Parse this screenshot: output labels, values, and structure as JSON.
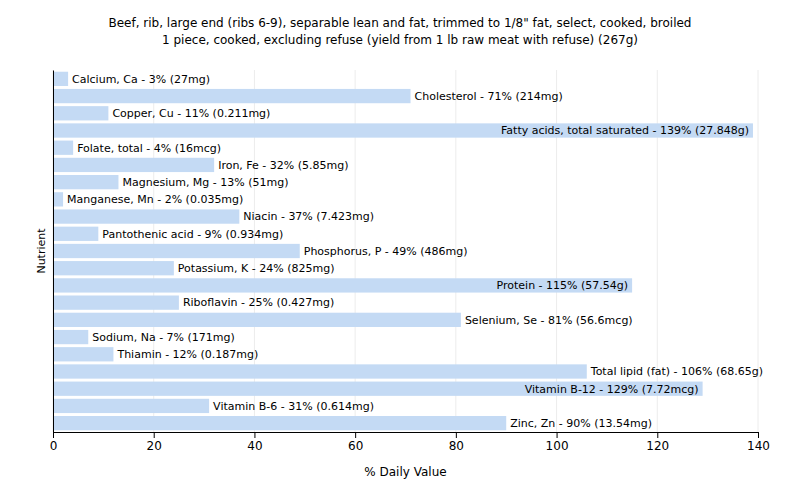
{
  "chart_data": {
    "type": "bar",
    "orientation": "horizontal",
    "title": "Beef, rib, large end (ribs 6-9), separable lean and fat, trimmed to 1/8\" fat, select, cooked, broiled",
    "subtitle": "1 piece, cooked, excluding refuse (yield from 1 lb raw meat with refuse) (267g)",
    "x_label": "% Daily Value",
    "y_label": "Nutrient",
    "categories": [
      null,
      null,
      null,
      null,
      null,
      null,
      null,
      null,
      null,
      null,
      null,
      null,
      null,
      null,
      null,
      null,
      null,
      null,
      null,
      null,
      null
    ],
    "values": [
      3,
      71,
      11,
      139,
      4,
      32,
      13,
      2,
      37,
      9,
      49,
      24,
      115,
      25,
      81,
      7,
      12,
      106,
      129,
      31,
      90
    ],
    "value_labels": [
      "Calcium, Ca - 3% (27mg)",
      "Cholesterol - 71% (214mg)",
      "Copper, Cu - 11% (0.211mg)",
      "Fatty acids, total saturated - 139% (27.848g)",
      "Folate, total - 4% (16mcg)",
      "Iron, Fe - 32% (5.85mg)",
      "Magnesium, Mg - 13% (51mg)",
      "Manganese, Mn - 2% (0.035mg)",
      "Niacin - 37% (7.423mg)",
      "Pantothenic acid - 9% (0.934mg)",
      "Phosphorus, P - 49% (486mg)",
      "Potassium, K - 24% (825mg)",
      "Protein - 115% (57.54g)",
      "Riboflavin - 25% (0.427mg)",
      "Selenium, Se - 81% (56.6mcg)",
      "Sodium, Na - 7% (171mg)",
      "Thiamin - 12% (0.187mg)",
      "Total lipid (fat) - 106% (68.65g)",
      "Vitamin B-12 - 129% (7.72mcg)",
      "Vitamin B-6 - 31% (0.614mg)",
      "Zinc, Zn - 90% (13.54mg)"
    ],
    "color": "#c4daf4",
    "xlim": [
      0,
      140
    ],
    "xticks": [
      0,
      20,
      40,
      60,
      80,
      100,
      120,
      140
    ],
    "grid": true,
    "data_labels": true,
    "tick_labels": "x"
  }
}
